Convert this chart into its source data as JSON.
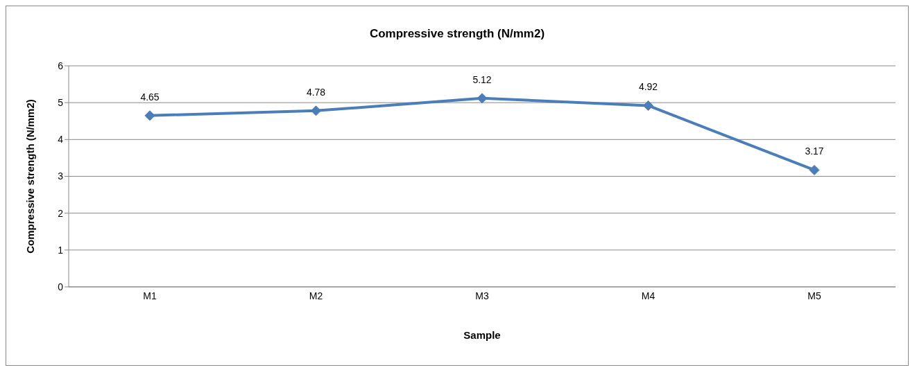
{
  "chart_data": {
    "type": "line",
    "title": "Compressive strength (N/mm2)",
    "xlabel": "Sample",
    "ylabel": "Compressive strength (N/mm2)",
    "categories": [
      "M1",
      "M2",
      "M3",
      "M4",
      "M5"
    ],
    "series": [
      {
        "color": "#4a7ebb",
        "values": [
          4.65,
          4.78,
          5.12,
          4.92,
          3.17
        ]
      }
    ],
    "ylim": [
      0,
      6
    ],
    "yticks": [
      0,
      1,
      2,
      3,
      4,
      5,
      6
    ],
    "grid": "y",
    "legend": false,
    "marker": "diamond",
    "line_style": "solid",
    "data_labels": true
  }
}
